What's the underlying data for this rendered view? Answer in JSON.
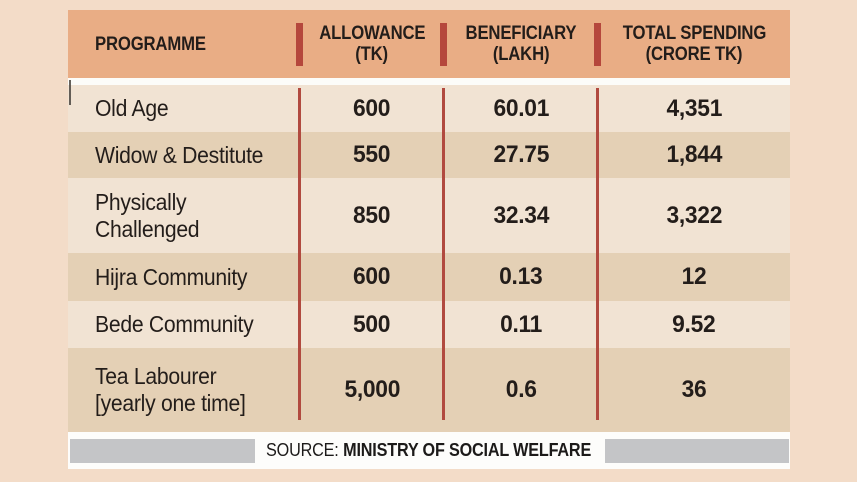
{
  "chart_data": {
    "type": "table",
    "title": "",
    "columns": [
      {
        "label": "PROGRAMME",
        "sub": ""
      },
      {
        "label": "ALLOWANCE",
        "sub": "(TK)"
      },
      {
        "label": "BENEFICIARY",
        "sub": "(LAKH)"
      },
      {
        "label": "TOTAL SPENDING",
        "sub": "(CRORE TK)"
      }
    ],
    "rows": [
      {
        "name": "Old Age",
        "label": "Old Age",
        "allowance_tk": 600,
        "beneficiary_lakh": 60.01,
        "total_spending_crore_tk": 4351,
        "display": {
          "allowance": "600",
          "beneficiary": "60.01",
          "total_spending": "4,351"
        }
      },
      {
        "name": "Widow & Destitute",
        "label": "Widow & Destitute",
        "allowance_tk": 550,
        "beneficiary_lakh": 27.75,
        "total_spending_crore_tk": 1844,
        "display": {
          "allowance": "550",
          "beneficiary": "27.75",
          "total_spending": "1,844"
        }
      },
      {
        "name": "Physically Challenged",
        "label": "Physically\nChallenged",
        "allowance_tk": 850,
        "beneficiary_lakh": 32.34,
        "total_spending_crore_tk": 3322,
        "display": {
          "allowance": "850",
          "beneficiary": "32.34",
          "total_spending": "3,322"
        }
      },
      {
        "name": "Hijra Community",
        "label": "Hijra Community",
        "allowance_tk": 600,
        "beneficiary_lakh": 0.13,
        "total_spending_crore_tk": 12,
        "display": {
          "allowance": "600",
          "beneficiary": "0.13",
          "total_spending": "12"
        }
      },
      {
        "name": "Bede Community",
        "label": "Bede Community",
        "allowance_tk": 500,
        "beneficiary_lakh": 0.11,
        "total_spending_crore_tk": 9.52,
        "display": {
          "allowance": "500",
          "beneficiary": "0.11",
          "total_spending": "9.52"
        }
      },
      {
        "name": "Tea Labourer [yearly one time]",
        "label": "Tea Labourer\n[yearly one time]",
        "allowance_tk": 5000,
        "beneficiary_lakh": 0.6,
        "total_spending_crore_tk": 36,
        "display": {
          "allowance": "5,000",
          "beneficiary": "0.6",
          "total_spending": "36"
        }
      }
    ]
  },
  "footer": {
    "source_label": "SOURCE:",
    "source_value": "MINISTRY OF SOCIAL WELFARE"
  },
  "colors": {
    "canvas_bg": "#f3dcc8",
    "header_bg": "#e9ad85",
    "row_light": "#f1e3d3",
    "row_dark": "#e4d0b5",
    "divider_red": "#b14a3f",
    "header_bar_red": "#b5473c",
    "footer_gray": "#c4c5c7",
    "text": "#231d1a"
  }
}
